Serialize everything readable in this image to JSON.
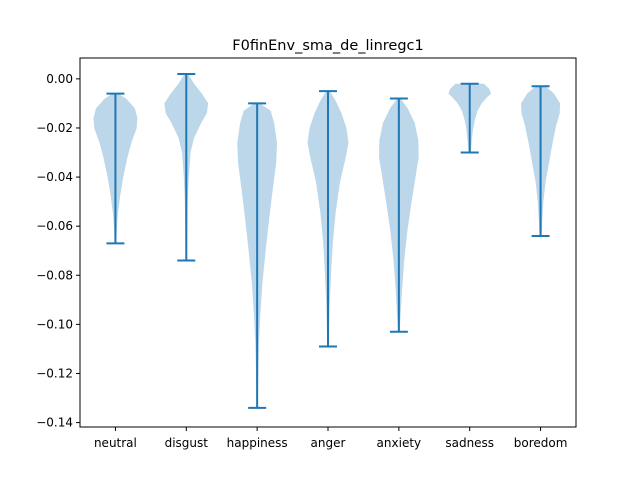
{
  "chart_data": {
    "type": "violin",
    "title": "F0finEnv_sma_de_linregc1",
    "xlabel": "",
    "ylabel": "",
    "categories": [
      "neutral",
      "disgust",
      "happiness",
      "anger",
      "anxiety",
      "sadness",
      "boredom"
    ],
    "ylim": [
      -0.1418,
      0.0085
    ],
    "yticks": [
      0.0,
      -0.02,
      -0.04,
      -0.06,
      -0.08,
      -0.1,
      -0.12,
      -0.14
    ],
    "ytick_labels": [
      "0.00",
      "−0.02",
      "−0.04",
      "−0.06",
      "−0.08",
      "−0.10",
      "−0.12",
      "−0.14"
    ],
    "grid": false,
    "colors": {
      "body": "#a6c9e3",
      "line": "#1f77b4"
    },
    "series": [
      {
        "category": "neutral",
        "max": -0.006,
        "min": -0.067,
        "profile": [
          [
            -0.006,
            0.08
          ],
          [
            -0.008,
            0.3
          ],
          [
            -0.012,
            0.55
          ],
          [
            -0.016,
            0.62
          ],
          [
            -0.02,
            0.6
          ],
          [
            -0.026,
            0.45
          ],
          [
            -0.032,
            0.34
          ],
          [
            -0.04,
            0.22
          ],
          [
            -0.048,
            0.13
          ],
          [
            -0.055,
            0.07
          ],
          [
            -0.061,
            0.04
          ],
          [
            -0.067,
            0.02
          ]
        ]
      },
      {
        "category": "disgust",
        "max": 0.002,
        "min": -0.074,
        "profile": [
          [
            0.002,
            0.05
          ],
          [
            -0.002,
            0.22
          ],
          [
            -0.006,
            0.44
          ],
          [
            -0.01,
            0.62
          ],
          [
            -0.014,
            0.58
          ],
          [
            -0.018,
            0.42
          ],
          [
            -0.024,
            0.22
          ],
          [
            -0.03,
            0.12
          ],
          [
            -0.04,
            0.07
          ],
          [
            -0.05,
            0.04
          ],
          [
            -0.062,
            0.03
          ],
          [
            -0.074,
            0.02
          ]
        ]
      },
      {
        "category": "happiness",
        "max": -0.01,
        "min": -0.134,
        "profile": [
          [
            -0.01,
            0.08
          ],
          [
            -0.013,
            0.38
          ],
          [
            -0.018,
            0.48
          ],
          [
            -0.026,
            0.56
          ],
          [
            -0.034,
            0.54
          ],
          [
            -0.045,
            0.44
          ],
          [
            -0.057,
            0.34
          ],
          [
            -0.07,
            0.24
          ],
          [
            -0.083,
            0.15
          ],
          [
            -0.096,
            0.09
          ],
          [
            -0.108,
            0.05
          ],
          [
            -0.121,
            0.03
          ],
          [
            -0.134,
            0.02
          ]
        ]
      },
      {
        "category": "anger",
        "max": -0.005,
        "min": -0.109,
        "profile": [
          [
            -0.005,
            0.05
          ],
          [
            -0.009,
            0.22
          ],
          [
            -0.014,
            0.38
          ],
          [
            -0.02,
            0.52
          ],
          [
            -0.026,
            0.58
          ],
          [
            -0.032,
            0.5
          ],
          [
            -0.042,
            0.34
          ],
          [
            -0.054,
            0.22
          ],
          [
            -0.066,
            0.14
          ],
          [
            -0.078,
            0.09
          ],
          [
            -0.092,
            0.05
          ],
          [
            -0.109,
            0.02
          ]
        ]
      },
      {
        "category": "anxiety",
        "max": -0.008,
        "min": -0.103,
        "profile": [
          [
            -0.008,
            0.05
          ],
          [
            -0.012,
            0.25
          ],
          [
            -0.018,
            0.45
          ],
          [
            -0.025,
            0.55
          ],
          [
            -0.032,
            0.56
          ],
          [
            -0.04,
            0.47
          ],
          [
            -0.05,
            0.36
          ],
          [
            -0.062,
            0.24
          ],
          [
            -0.074,
            0.15
          ],
          [
            -0.086,
            0.09
          ],
          [
            -0.096,
            0.05
          ],
          [
            -0.103,
            0.02
          ]
        ]
      },
      {
        "category": "sadness",
        "max": -0.002,
        "min": -0.03,
        "profile": [
          [
            -0.002,
            0.4
          ],
          [
            -0.004,
            0.55
          ],
          [
            -0.006,
            0.6
          ],
          [
            -0.008,
            0.46
          ],
          [
            -0.01,
            0.34
          ],
          [
            -0.013,
            0.22
          ],
          [
            -0.017,
            0.14
          ],
          [
            -0.021,
            0.09
          ],
          [
            -0.025,
            0.06
          ],
          [
            -0.03,
            0.03
          ]
        ]
      },
      {
        "category": "boredom",
        "max": -0.003,
        "min": -0.064,
        "profile": [
          [
            -0.003,
            0.14
          ],
          [
            -0.006,
            0.38
          ],
          [
            -0.01,
            0.55
          ],
          [
            -0.014,
            0.54
          ],
          [
            -0.019,
            0.44
          ],
          [
            -0.026,
            0.34
          ],
          [
            -0.034,
            0.24
          ],
          [
            -0.042,
            0.14
          ],
          [
            -0.05,
            0.08
          ],
          [
            -0.057,
            0.05
          ],
          [
            -0.064,
            0.03
          ]
        ]
      }
    ]
  }
}
